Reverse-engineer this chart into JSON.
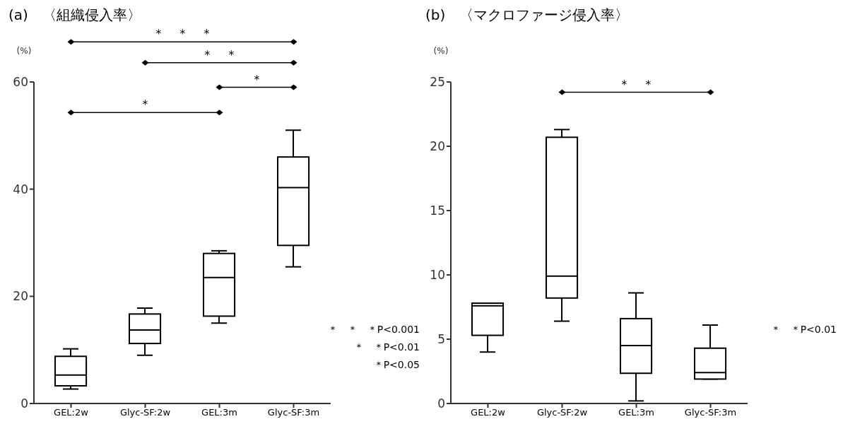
{
  "chart_data": [
    {
      "type": "box",
      "title": "(a)　〈組織侵入率〉",
      "ylabel": "(%)",
      "color": "#000000",
      "categories": [
        "GEL:2w",
        "Glyc-SF:2w",
        "GEL:3m",
        "Glyc-SF:3m"
      ],
      "ylim": [
        0,
        60
      ],
      "yticks": [
        0,
        20,
        40,
        60
      ],
      "grid": false,
      "boxes": [
        {
          "low": 2.7,
          "q1": 3.3,
          "median": 5.3,
          "q3": 8.8,
          "high": 10.2
        },
        {
          "low": 9.0,
          "q1": 11.2,
          "median": 13.7,
          "q3": 16.7,
          "high": 17.8
        },
        {
          "low": 15.0,
          "q1": 16.3,
          "median": 23.5,
          "q3": 28.0,
          "high": 28.5
        },
        {
          "low": 25.5,
          "q1": 29.5,
          "median": 40.3,
          "q3": 46.0,
          "high": 51.0
        }
      ],
      "annotations": [
        "＊　＊　＊",
        "＊　＊",
        "＊",
        "＊",
        "＊　＊　＊P<0.001",
        "＊　＊P<0.01",
        "＊P<0.05"
      ]
    },
    {
      "type": "box",
      "title": "(b)　〈マクロファージ侵入率〉",
      "ylabel": "(%)",
      "color": "#000000",
      "categories": [
        "GEL:2w",
        "Glyc-SF:2w",
        "GEL:3m",
        "Glyc-SF:3m"
      ],
      "ylim": [
        0,
        25
      ],
      "yticks": [
        0,
        5,
        10,
        15,
        20,
        25
      ],
      "grid": false,
      "boxes": [
        {
          "low": 4.0,
          "q1": 5.3,
          "median": 7.6,
          "q3": 7.8,
          "high": 7.8
        },
        {
          "low": 6.4,
          "q1": 8.2,
          "median": 9.9,
          "q3": 20.7,
          "high": 21.3
        },
        {
          "low": 0.2,
          "q1": 2.35,
          "median": 4.5,
          "q3": 6.6,
          "high": 8.6
        },
        {
          "low": 1.9,
          "q1": 1.9,
          "median": 2.4,
          "q3": 4.3,
          "high": 6.1
        }
      ],
      "annotations": [
        "＊　＊",
        "＊　＊P<0.01"
      ]
    }
  ]
}
